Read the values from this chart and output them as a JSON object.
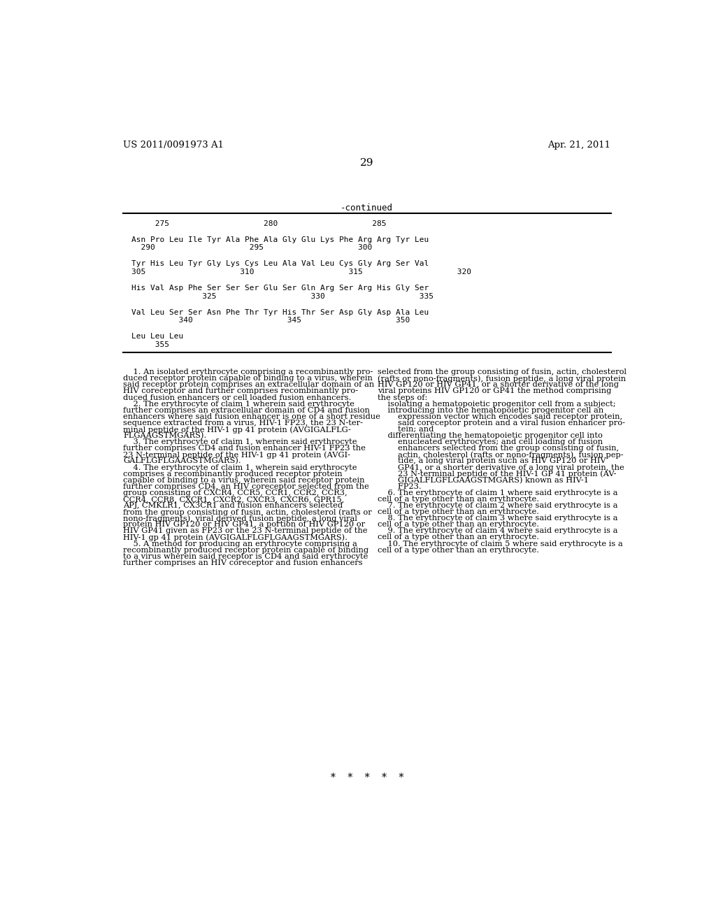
{
  "header_left": "US 2011/0091973 A1",
  "header_right": "Apr. 21, 2011",
  "page_number": "29",
  "continued_label": "-continued",
  "sequence_lines": [
    {
      "type": "numbers",
      "text": "     275                    280                    285"
    },
    {
      "type": "blank"
    },
    {
      "type": "sequence",
      "text": "Asn Pro Leu Ile Tyr Ala Phe Ala Gly Glu Lys Phe Arg Arg Tyr Leu"
    },
    {
      "type": "numbers",
      "text": "  290                    295                    300"
    },
    {
      "type": "blank"
    },
    {
      "type": "sequence",
      "text": "Tyr His Leu Tyr Gly Lys Cys Leu Ala Val Leu Cys Gly Arg Ser Val"
    },
    {
      "type": "numbers",
      "text": "305                    310                    315                    320"
    },
    {
      "type": "blank"
    },
    {
      "type": "sequence",
      "text": "His Val Asp Phe Ser Ser Ser Glu Ser Gln Arg Ser Arg His Gly Ser"
    },
    {
      "type": "numbers",
      "text": "               325                    330                    335"
    },
    {
      "type": "blank"
    },
    {
      "type": "sequence",
      "text": "Val Leu Ser Ser Asn Phe Thr Tyr His Thr Ser Asp Gly Asp Ala Leu"
    },
    {
      "type": "numbers",
      "text": "          340                    345                    350"
    },
    {
      "type": "blank"
    },
    {
      "type": "sequence",
      "text": "Leu Leu Leu"
    },
    {
      "type": "numbers",
      "text": "     355"
    }
  ],
  "col1_claims": "    1. An isolated erythrocyte comprising a recombinantly pro-\nduced receptor protein capable of binding to a virus, wherein\nsaid receptor protein comprises an extracellular domain of an\nHIV coreceptor and further comprises recombinantly pro-\nduced fusion enhancers or cell loaded fusion enhancers.\n    2. The erythrocyte of claim 1 wherein said erythrocyte\nfurther comprises an extracellular domain of CD4 and fusion\nenhancers where said fusion enhancer is one of a short residue\nsequence extracted from a virus, HIV-1 FP23, the 23 N-ter-\nminal peptide of the HIV-1 gp 41 protein (AVGIGALFLG-\nFLGAAGSTMGARS).\n    3. The erythrocyte of claim 1, wherein said erythrocyte\nfurther comprises CD4 and fusion enhancer HIV-1 FP23 the\n23 N-terminal peptide of the HIV-1 gp 41 protein (AVGI-\nGALFLGFLGAAGSTMGARS).\n    4. The erythrocyte of claim 1, wherein said erythrocyte\ncomprises a recombinantly produced receptor protein\ncapable of binding to a virus, wherein said receptor protein\nfurther comprises CD4, an HIV coreceptor selected from the\ngroup consisting of CXCR4, CCR5, CCR1, CCR2, CCR3,\nCCR4, CCR8, CXCR1, CXCR2, CXCR3, CXCR6, GPR15,\nAPJ, CMKLR1, CX3CR1 and fusion enhancers selected\nfrom the group consisting of fusin, actin, cholesterol (rafts or\nnono-fragments), viral derived fusion peptide, a long viral\nprotein HIV GP120 or HIV GP41, a portion of HIV GP120 or\nHIV GP41 given as FP23 or the 23 N-terminal peptide of the\nHIV-1 gp 41 protein (AVGIGALFLGFLGAAGSTMGARS).\n    5. A method for producing an erythrocyte comprising a\nrecombinantly produced receptor protein capable of binding\nto a virus wherein said receptor is CD4 and said erythrocyte\nfurther comprises an HIV coreceptor and fusion enhancers",
  "col2_claims": "selected from the group consisting of fusin, actin, cholesterol\n(rafts or nono-fragments), fusion peptide, a long viral protein\nHIV GP120 or HIV GP41, or a shorter derivative of the long\nviral proteins HIV GP120 or GP41 the method comprising\nthe steps of:\n    isolating a hematopoietic progenitor cell from a subject;\n    introducing into the hematopoietic progenitor cell an\n        expression vector which encodes said receptor protein,\n        said coreceptor protein and a viral fusion enhancer pro-\n        tein; and\n    differentiating the hematopoietic progenitor cell into\n        enucleated erythrocytes; and cell loading of fusion\n        enhancers selected from the group consisting of fusin,\n        actin, cholesterol (rafts or nono-fragments), fusion pep-\n        tide, a long viral protein such as HIV GP120 or HIV\n        GP41, or a shorter derivative of a long viral protein, the\n        23 N-terminal peptide of the HIV-1 GP 41 protein (AV-\n        GIGALFLGFLGAAGSTMGARS) known as HIV-1\n        FP23.\n    6. The erythrocyte of claim 1 where said erythrocyte is a\ncell of a type other than an erythrocyte.\n    7. The erythrocyte of claim 2 where said erythrocyte is a\ncell of a type other than an erythrocyte.\n    8. The erythrocyte of claim 3 where said erythrocyte is a\ncell of a type other than an erythrocyte.\n    9. The erythrocyte of claim 4 where said erythrocyte is a\ncell of a type other than an erythrocyte.\n    10. The erythrocyte of claim 5 where said erythrocyte is a\ncell of a type other than an erythrocyte.",
  "asterisks": "*    *    *    *    *",
  "bg_color": "#ffffff",
  "text_color": "#000000",
  "line_color": "#000000"
}
